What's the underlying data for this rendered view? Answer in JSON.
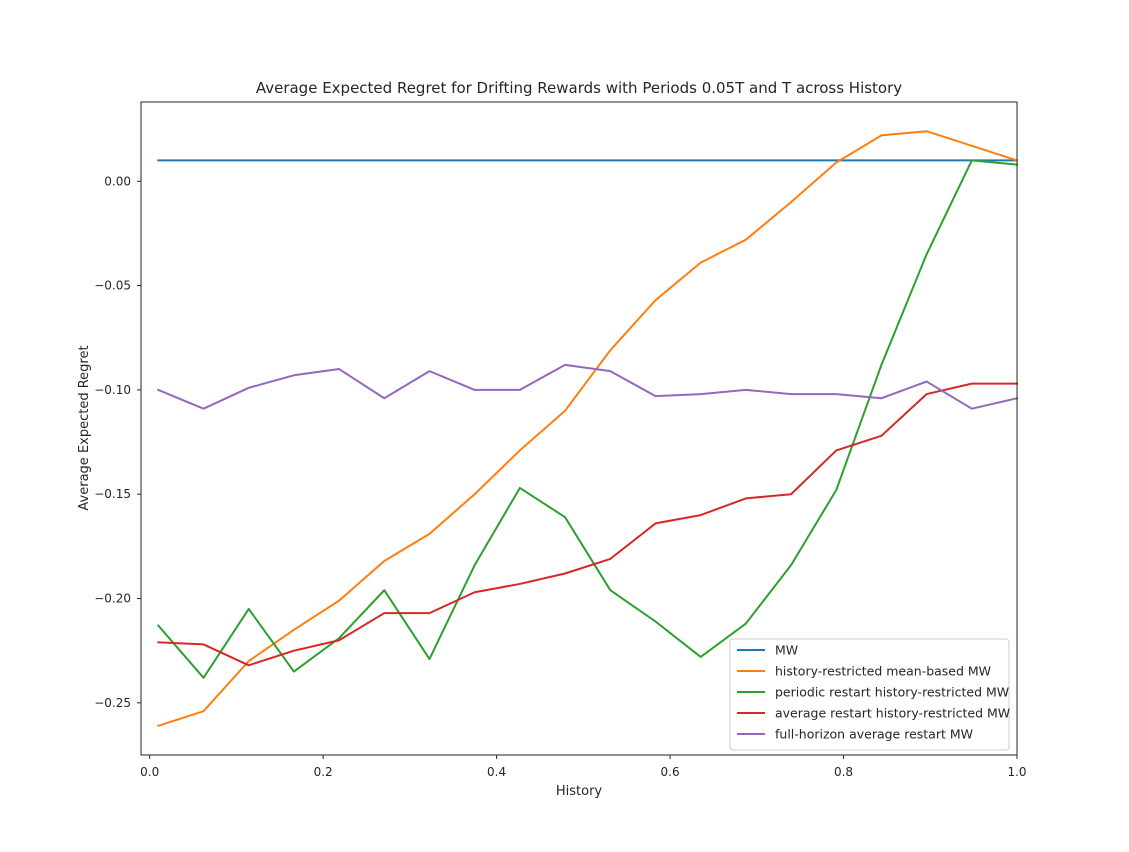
{
  "chart_data": {
    "type": "line",
    "title": "Average Expected Regret for Drifting Rewards with Periods 0.05T and T across History",
    "xlabel": "History",
    "ylabel": "Average Expected Regret",
    "xlim": [
      -0.01,
      1.0
    ],
    "ylim": [
      -0.275,
      0.038
    ],
    "xticks": [
      0.0,
      0.2,
      0.4,
      0.6,
      0.8,
      1.0
    ],
    "xtick_labels": [
      "0.0",
      "0.2",
      "0.4",
      "0.6",
      "0.8",
      "1.0"
    ],
    "yticks": [
      0.0,
      -0.05,
      -0.1,
      -0.15,
      -0.2,
      -0.25
    ],
    "ytick_labels": [
      "0.00",
      "−0.05",
      "−0.10",
      "−0.15",
      "−0.20",
      "−0.25"
    ],
    "grid": false,
    "legend_position": "lower-right",
    "x": [
      0.01,
      0.0621,
      0.1142,
      0.1663,
      0.2184,
      0.2705,
      0.3226,
      0.3747,
      0.4268,
      0.4789,
      0.5311,
      0.5832,
      0.6353,
      0.6874,
      0.7395,
      0.7916,
      0.8437,
      0.8958,
      0.9479,
      1.0
    ],
    "series": [
      {
        "name": "MW",
        "color": "#1f77b4",
        "values": [
          0.01,
          0.01,
          0.01,
          0.01,
          0.01,
          0.01,
          0.01,
          0.01,
          0.01,
          0.01,
          0.01,
          0.01,
          0.01,
          0.01,
          0.01,
          0.01,
          0.01,
          0.01,
          0.01,
          0.01
        ]
      },
      {
        "name": "history-restricted mean-based MW",
        "color": "#ff7f0e",
        "values": [
          -0.261,
          -0.254,
          -0.23,
          -0.215,
          -0.201,
          -0.182,
          -0.169,
          -0.15,
          -0.129,
          -0.11,
          -0.081,
          -0.057,
          -0.039,
          -0.028,
          -0.01,
          0.009,
          0.022,
          0.024,
          0.017,
          0.01
        ]
      },
      {
        "name": "periodic restart history-restricted MW",
        "color": "#2ca02c",
        "values": [
          -0.213,
          -0.238,
          -0.205,
          -0.235,
          -0.219,
          -0.196,
          -0.229,
          -0.184,
          -0.147,
          -0.161,
          -0.196,
          -0.211,
          -0.228,
          -0.212,
          -0.184,
          -0.148,
          -0.088,
          -0.035,
          0.01,
          0.008
        ]
      },
      {
        "name": "average restart history-restricted MW",
        "color": "#d62728",
        "values": [
          -0.221,
          -0.222,
          -0.232,
          -0.225,
          -0.22,
          -0.207,
          -0.207,
          -0.197,
          -0.193,
          -0.188,
          -0.181,
          -0.164,
          -0.16,
          -0.152,
          -0.15,
          -0.129,
          -0.122,
          -0.102,
          -0.097,
          -0.097
        ]
      },
      {
        "name": "full-horizon average restart MW",
        "color": "#9467bd",
        "values": [
          -0.1,
          -0.109,
          -0.099,
          -0.093,
          -0.09,
          -0.104,
          -0.091,
          -0.1,
          -0.1,
          -0.088,
          -0.091,
          -0.103,
          -0.102,
          -0.1,
          -0.102,
          -0.102,
          -0.104,
          -0.096,
          -0.109,
          -0.104
        ]
      }
    ]
  }
}
